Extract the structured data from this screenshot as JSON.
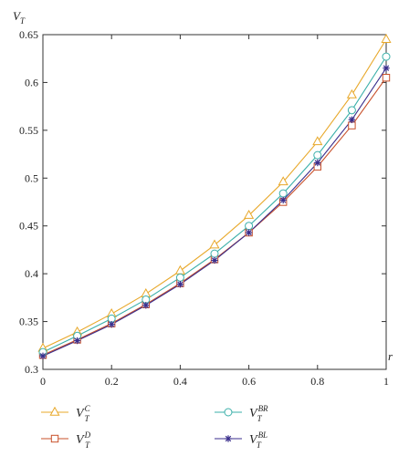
{
  "chart_data": {
    "type": "line",
    "title": "",
    "xlabel": "r",
    "ylabel": {
      "main": "V",
      "sub": "T"
    },
    "xlim": [
      0,
      1
    ],
    "ylim": [
      0.3,
      0.65
    ],
    "x_ticks": [
      "0",
      "0.2",
      "0.4",
      "0.6",
      "0.8",
      "1"
    ],
    "y_ticks": [
      "0.3",
      "0.35",
      "0.4",
      "0.45",
      "0.5",
      "0.55",
      "0.6",
      "0.65"
    ],
    "grid": false,
    "legend_position": "bottom",
    "x": [
      0,
      0.1,
      0.2,
      0.3,
      0.4,
      0.5,
      0.6,
      0.7,
      0.8,
      0.9,
      1.0
    ],
    "series": [
      {
        "name": "V_T^C",
        "label_main": "V",
        "label_sub": "T",
        "label_sup": "C",
        "marker": "triangle",
        "color": "#E8A82A",
        "values": [
          0.322,
          0.339,
          0.358,
          0.379,
          0.403,
          0.43,
          0.461,
          0.496,
          0.538,
          0.587,
          0.645
        ]
      },
      {
        "name": "V_T^D",
        "label_main": "V",
        "label_sub": "T",
        "label_sup": "D",
        "marker": "square",
        "color": "#C8502A",
        "values": [
          0.315,
          0.331,
          0.348,
          0.368,
          0.39,
          0.415,
          0.443,
          0.475,
          0.512,
          0.555,
          0.605
        ]
      },
      {
        "name": "V_T^BR",
        "label_main": "V",
        "label_sub": "T",
        "label_sup": "BR",
        "marker": "circle",
        "color": "#3AAFA9",
        "values": [
          0.318,
          0.335,
          0.353,
          0.373,
          0.396,
          0.421,
          0.45,
          0.484,
          0.524,
          0.571,
          0.627
        ]
      },
      {
        "name": "V_T^BL",
        "label_main": "V",
        "label_sub": "T",
        "label_sup": "BL",
        "marker": "star",
        "color": "#3A2E8C",
        "values": [
          0.314,
          0.33,
          0.347,
          0.367,
          0.389,
          0.414,
          0.443,
          0.477,
          0.516,
          0.561,
          0.615
        ]
      }
    ]
  }
}
